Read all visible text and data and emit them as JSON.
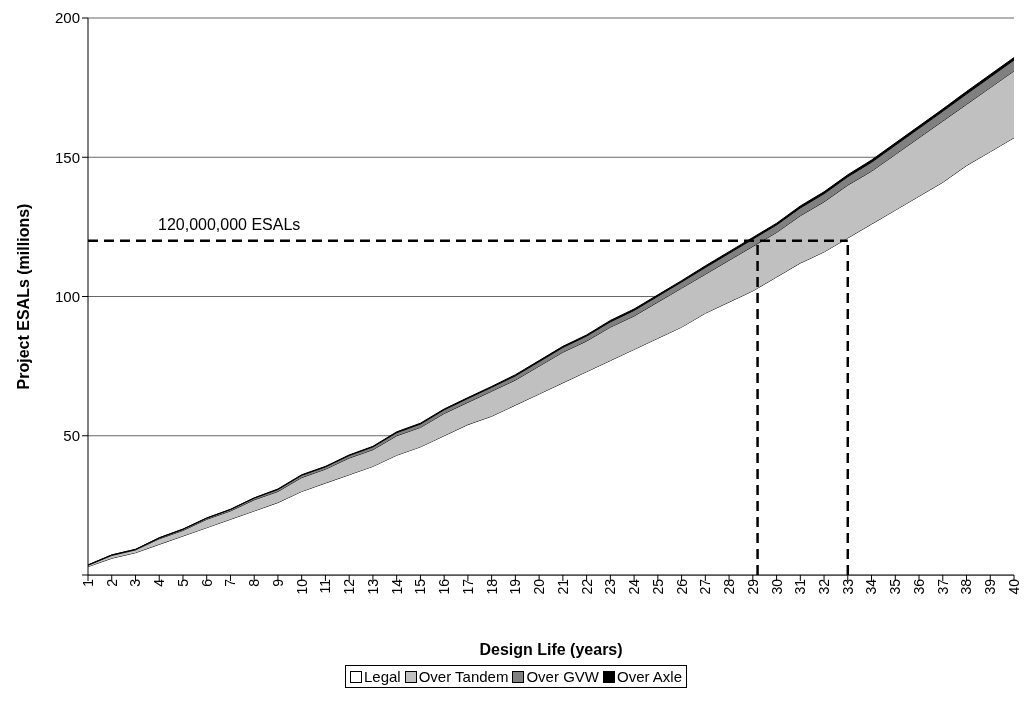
{
  "chart_data": {
    "type": "area",
    "stacked": true,
    "xlabel": "Design Life (years)",
    "ylabel": "Project ESALs (millions)",
    "x": [
      1,
      2,
      3,
      4,
      5,
      6,
      7,
      8,
      9,
      10,
      11,
      12,
      13,
      14,
      15,
      16,
      17,
      18,
      19,
      20,
      21,
      22,
      23,
      24,
      25,
      26,
      27,
      28,
      29,
      30,
      31,
      32,
      33,
      34,
      35,
      36,
      37,
      38,
      39,
      40
    ],
    "xlim": [
      1,
      40
    ],
    "xticks": [
      1,
      2,
      3,
      4,
      5,
      6,
      7,
      8,
      9,
      10,
      11,
      12,
      13,
      14,
      15,
      16,
      17,
      18,
      19,
      20,
      21,
      22,
      23,
      24,
      25,
      26,
      27,
      28,
      29,
      30,
      31,
      32,
      33,
      34,
      35,
      36,
      37,
      38,
      39,
      40
    ],
    "ylim": [
      0,
      200
    ],
    "yticks": [
      {
        "value": 0,
        "label": null
      },
      50,
      100,
      150,
      200
    ],
    "grid": "y",
    "legend": "bottom",
    "series": [
      {
        "name": "Legal",
        "color": "#ffffff",
        "values": [
          3,
          6,
          8,
          11,
          14,
          17,
          20,
          23,
          26,
          30,
          33,
          36,
          39,
          43,
          46,
          50,
          54,
          57,
          61,
          65,
          69,
          73,
          77,
          81,
          85,
          89,
          94,
          98,
          102,
          107,
          112,
          116,
          121,
          126,
          131,
          136,
          141,
          147,
          152,
          157
        ]
      },
      {
        "name": "Over Tandem",
        "color": "#c0c0c0",
        "values": [
          0.5,
          1,
          1,
          2,
          2,
          3,
          3,
          4,
          4,
          5,
          5,
          6,
          6,
          7,
          7,
          8,
          8,
          9,
          9,
          10,
          11,
          11,
          12,
          12,
          13,
          14,
          14,
          15,
          16,
          16,
          17,
          18,
          19,
          19,
          20,
          21,
          22,
          22,
          23,
          24
        ]
      },
      {
        "name": "Over GVW",
        "color": "#808080",
        "values": [
          0.1,
          0.2,
          0.2,
          0.3,
          0.4,
          0.4,
          0.5,
          0.6,
          0.7,
          0.8,
          0.8,
          0.9,
          1.0,
          1.1,
          1.2,
          1.3,
          1.4,
          1.4,
          1.5,
          1.6,
          1.7,
          1.8,
          1.9,
          2.0,
          2.1,
          2.2,
          2.4,
          2.5,
          2.6,
          2.7,
          2.8,
          2.9,
          3.0,
          3.2,
          3.3,
          3.4,
          3.5,
          3.7,
          3.8,
          3.9
        ]
      },
      {
        "name": "Over Axle",
        "color": "#000000",
        "values": [
          0.0,
          0.0,
          0.0,
          0.1,
          0.1,
          0.1,
          0.1,
          0.1,
          0.2,
          0.2,
          0.2,
          0.2,
          0.2,
          0.3,
          0.3,
          0.3,
          0.3,
          0.3,
          0.4,
          0.4,
          0.4,
          0.4,
          0.5,
          0.5,
          0.5,
          0.5,
          0.6,
          0.6,
          0.6,
          0.6,
          0.7,
          0.7,
          0.7,
          0.8,
          0.8,
          0.8,
          0.8,
          0.9,
          0.9,
          0.9
        ]
      }
    ],
    "ref_lines": [
      {
        "axis": "y",
        "value": 120,
        "label": "120,000,000 ESALs",
        "color": "#000000",
        "line_style": "dashed"
      },
      {
        "axis": "x",
        "value": 29.2,
        "color": "#000000",
        "line_style": "dashed"
      },
      {
        "axis": "x",
        "value": 33,
        "color": "#000000",
        "line_style": "dashed"
      }
    ]
  }
}
